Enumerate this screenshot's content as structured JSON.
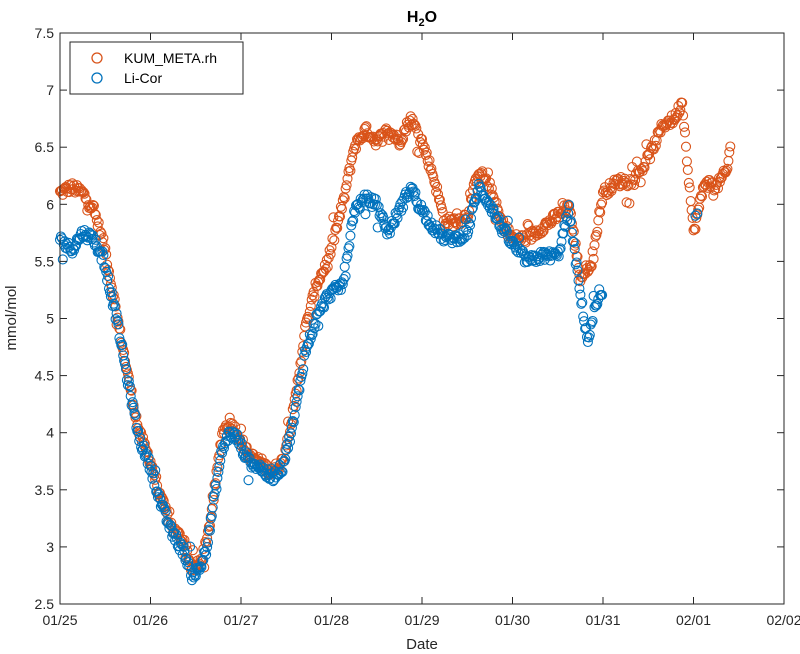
{
  "chart_data": {
    "type": "scatter",
    "title": "H",
    "title_sub": "2",
    "title_tail": "O",
    "xlabel": "Date",
    "ylabel": "mmol/mol",
    "xlim": [
      "01/25",
      "02/02"
    ],
    "ylim": [
      2.5,
      7.5
    ],
    "x_ticks": [
      "01/25",
      "01/26",
      "01/27",
      "01/28",
      "01/29",
      "01/30",
      "01/31",
      "02/01",
      "02/02"
    ],
    "y_ticks": [
      "2.5",
      "3",
      "3.5",
      "4",
      "4.5",
      "5",
      "5.5",
      "6",
      "6.5",
      "7",
      "7.5"
    ],
    "legend": {
      "position": "top-left",
      "box": true
    },
    "marker": "open-circle",
    "series": [
      {
        "name": "KUM_META.rh",
        "color": "#D95319",
        "keypoints": [
          [
            "01/25 00:00",
            6.1
          ],
          [
            "01/25 03:00",
            6.15
          ],
          [
            "01/25 06:00",
            6.1
          ],
          [
            "01/25 09:00",
            5.95
          ],
          [
            "01/25 12:00",
            5.6
          ],
          [
            "01/25 15:00",
            5.05
          ],
          [
            "01/25 18:00",
            4.5
          ],
          [
            "01/25 21:00",
            4.0
          ],
          [
            "01/26 00:00",
            3.75
          ],
          [
            "01/26 03:00",
            3.4
          ],
          [
            "01/26 06:00",
            3.15
          ],
          [
            "01/26 09:00",
            3.05
          ],
          [
            "01/26 11:00",
            2.8
          ],
          [
            "01/26 13:00",
            2.85
          ],
          [
            "01/26 15:00",
            3.05
          ],
          [
            "01/26 17:00",
            3.5
          ],
          [
            "01/26 19:00",
            4.0
          ],
          [
            "01/26 21:00",
            4.1
          ],
          [
            "01/26 23:00",
            4.0
          ],
          [
            "01/27 02:00",
            3.8
          ],
          [
            "01/27 05:00",
            3.75
          ],
          [
            "01/27 08:00",
            3.65
          ],
          [
            "01/27 11:00",
            3.75
          ],
          [
            "01/27 14:00",
            4.2
          ],
          [
            "01/27 17:00",
            4.9
          ],
          [
            "01/27 20:00",
            5.3
          ],
          [
            "01/27 23:00",
            5.5
          ],
          [
            "01/28 03:00",
            6.0
          ],
          [
            "01/28 06:00",
            6.5
          ],
          [
            "01/28 09:00",
            6.65
          ],
          [
            "01/28 12:00",
            6.55
          ],
          [
            "01/28 15:00",
            6.65
          ],
          [
            "01/28 18:00",
            6.55
          ],
          [
            "01/28 21:00",
            6.75
          ],
          [
            "01/29 00:00",
            6.55
          ],
          [
            "01/29 03:00",
            6.25
          ],
          [
            "01/29 06:00",
            5.85
          ],
          [
            "01/29 09:00",
            5.85
          ],
          [
            "01/29 12:00",
            5.9
          ],
          [
            "01/29 15:00",
            6.3
          ],
          [
            "01/29 18:00",
            6.15
          ],
          [
            "01/29 21:00",
            5.85
          ],
          [
            "01/30 00:00",
            5.7
          ],
          [
            "01/30 04:00",
            5.7
          ],
          [
            "01/30 08:00",
            5.8
          ],
          [
            "01/30 12:00",
            5.9
          ],
          [
            "01/30 15:00",
            6.0
          ],
          [
            "01/30 18:00",
            5.35
          ],
          [
            "01/30 21:00",
            5.5
          ],
          [
            "01/31 00:00",
            6.1
          ],
          [
            "01/31 04:00",
            6.2
          ],
          [
            "01/31 08:00",
            6.2
          ],
          [
            "01/31 12:00",
            6.4
          ],
          [
            "01/31 16:00",
            6.7
          ],
          [
            "01/31 19:00",
            6.75
          ],
          [
            "01/31 21:00",
            6.9
          ],
          [
            "02/01 00:00",
            5.75
          ],
          [
            "02/01 03:00",
            6.2
          ],
          [
            "02/01 06:00",
            6.15
          ],
          [
            "02/01 09:00",
            6.3
          ],
          [
            "02/01 10:00",
            6.6
          ]
        ]
      },
      {
        "name": "Li-Cor",
        "color": "#0072BD",
        "keypoints": [
          [
            "01/25 00:00",
            5.7
          ],
          [
            "01/25 03:00",
            5.6
          ],
          [
            "01/25 06:00",
            5.75
          ],
          [
            "01/25 09:00",
            5.7
          ],
          [
            "01/25 12:00",
            5.45
          ],
          [
            "01/25 15:00",
            5.0
          ],
          [
            "01/25 18:00",
            4.45
          ],
          [
            "01/25 21:00",
            3.95
          ],
          [
            "01/26 00:00",
            3.7
          ],
          [
            "01/26 03:00",
            3.35
          ],
          [
            "01/26 06:00",
            3.1
          ],
          [
            "01/26 09:00",
            2.95
          ],
          [
            "01/26 11:00",
            2.75
          ],
          [
            "01/26 13:00",
            2.8
          ],
          [
            "01/26 15:00",
            3.0
          ],
          [
            "01/26 17:00",
            3.45
          ],
          [
            "01/26 19:00",
            3.85
          ],
          [
            "01/26 21:00",
            4.0
          ],
          [
            "01/26 23:00",
            3.95
          ],
          [
            "01/27 02:00",
            3.75
          ],
          [
            "01/27 05:00",
            3.7
          ],
          [
            "01/27 08:00",
            3.6
          ],
          [
            "01/27 11:00",
            3.7
          ],
          [
            "01/27 14:00",
            4.1
          ],
          [
            "01/27 17:00",
            4.7
          ],
          [
            "01/27 20:00",
            5.0
          ],
          [
            "01/27 23:00",
            5.2
          ],
          [
            "01/28 03:00",
            5.3
          ],
          [
            "01/28 06:00",
            5.95
          ],
          [
            "01/28 09:00",
            6.05
          ],
          [
            "01/28 12:00",
            6.0
          ],
          [
            "01/28 15:00",
            5.75
          ],
          [
            "01/28 18:00",
            5.95
          ],
          [
            "01/28 21:00",
            6.15
          ],
          [
            "01/29 00:00",
            5.95
          ],
          [
            "01/29 03:00",
            5.8
          ],
          [
            "01/29 06:00",
            5.7
          ],
          [
            "01/29 09:00",
            5.7
          ],
          [
            "01/29 12:00",
            5.75
          ],
          [
            "01/29 15:00",
            6.15
          ],
          [
            "01/29 18:00",
            6.0
          ],
          [
            "01/29 21:00",
            5.8
          ],
          [
            "01/30 00:00",
            5.65
          ],
          [
            "01/30 04:00",
            5.5
          ],
          [
            "01/30 08:00",
            5.55
          ],
          [
            "01/30 12:00",
            5.55
          ],
          [
            "01/30 15:00",
            5.95
          ],
          [
            "01/30 18:00",
            5.2
          ],
          [
            "01/30 20:00",
            4.8
          ],
          [
            "01/30 22:00",
            5.1
          ],
          [
            "01/31 00:00",
            5.2
          ]
        ],
        "extra_points": [
          [
            "02/01 00:30",
            5.9
          ],
          [
            "02/01 01:00",
            5.92
          ]
        ]
      }
    ]
  }
}
